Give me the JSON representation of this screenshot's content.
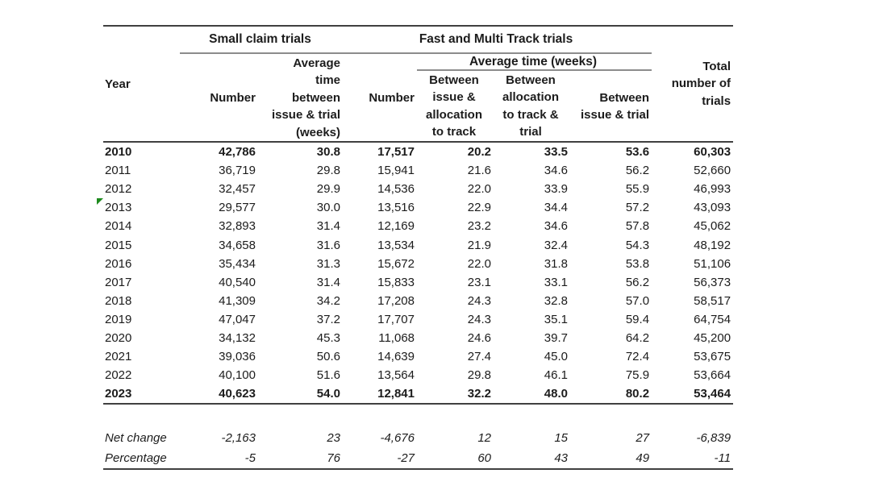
{
  "table": {
    "header": {
      "year": "Year",
      "small_claims_group": "Small claim trials",
      "fast_track_group": "Fast and Multi Track trials",
      "total": "Total\nnumber of\ntrials",
      "number_small": "Number",
      "avg_time_small": "Average\ntime\nbetween\nissue & trial\n(weeks)",
      "number_fast": "Number",
      "avg_time_group": "Average time (weeks)",
      "between_issue_allocation": "Between\nissue &\nallocation\nto track",
      "between_allocation_trial": "Between\nallocation\nto track &\ntrial",
      "between_issue_trial": "Between\nissue & trial"
    },
    "rows": [
      {
        "year": "2010",
        "bold": true,
        "values": [
          "42,786",
          "30.8",
          "17,517",
          "20.2",
          "33.5",
          "53.6",
          "60,303"
        ]
      },
      {
        "year": "2011",
        "values": [
          "36,719",
          "29.8",
          "15,941",
          "21.6",
          "34.6",
          "56.2",
          "52,660"
        ]
      },
      {
        "year": "2012",
        "values": [
          "32,457",
          "29.9",
          "14,536",
          "22.0",
          "33.9",
          "55.9",
          "46,993"
        ]
      },
      {
        "year": "2013",
        "marker": true,
        "values": [
          "29,577",
          "30.0",
          "13,516",
          "22.9",
          "34.4",
          "57.2",
          "43,093"
        ]
      },
      {
        "year": "2014",
        "values": [
          "32,893",
          "31.4",
          "12,169",
          "23.2",
          "34.6",
          "57.8",
          "45,062"
        ]
      },
      {
        "year": "2015",
        "values": [
          "34,658",
          "31.6",
          "13,534",
          "21.9",
          "32.4",
          "54.3",
          "48,192"
        ]
      },
      {
        "year": "2016",
        "values": [
          "35,434",
          "31.3",
          "15,672",
          "22.0",
          "31.8",
          "53.8",
          "51,106"
        ]
      },
      {
        "year": "2017",
        "values": [
          "40,540",
          "31.4",
          "15,833",
          "23.1",
          "33.1",
          "56.2",
          "56,373"
        ]
      },
      {
        "year": "2018",
        "values": [
          "41,309",
          "34.2",
          "17,208",
          "24.3",
          "32.8",
          "57.0",
          "58,517"
        ]
      },
      {
        "year": "2019",
        "values": [
          "47,047",
          "37.2",
          "17,707",
          "24.3",
          "35.1",
          "59.4",
          "64,754"
        ]
      },
      {
        "year": "2020",
        "values": [
          "34,132",
          "45.3",
          "11,068",
          "24.6",
          "39.7",
          "64.2",
          "45,200"
        ]
      },
      {
        "year": "2021",
        "values": [
          "39,036",
          "50.6",
          "14,639",
          "27.4",
          "45.0",
          "72.4",
          "53,675"
        ]
      },
      {
        "year": "2022",
        "values": [
          "40,100",
          "51.6",
          "13,564",
          "29.8",
          "46.1",
          "75.9",
          "53,664"
        ]
      },
      {
        "year": "2023",
        "bold": true,
        "rule_below": true,
        "values": [
          "40,623",
          "54.0",
          "12,841",
          "32.2",
          "48.0",
          "80.2",
          "53,464"
        ]
      }
    ],
    "summary_rows": [
      {
        "label": "Net change",
        "values": [
          "-2,163",
          "23",
          "-4,676",
          "12",
          "15",
          "27",
          "-6,839"
        ]
      },
      {
        "label": "Percentage",
        "values": [
          "-5",
          "76",
          "-27",
          "60",
          "43",
          "49",
          "-11"
        ]
      }
    ]
  },
  "colors": {
    "rule_dark": "#404040",
    "rule_gray": "#8c8c8c",
    "marker_green": "#1d8a1d",
    "text": "#1c1c1c",
    "background": "#ffffff"
  },
  "icons": {
    "cell_error_indicator": "green corner triangle"
  },
  "chart_data": {
    "type": "table",
    "title": "",
    "column_groups": [
      "",
      "Small claim trials",
      "Fast and Multi Track trials",
      "Total"
    ],
    "columns": [
      "Year",
      "Small claim trials - Number",
      "Small claim trials - Average time between issue & trial (weeks)",
      "Fast and Multi Track trials - Number",
      "Fast and Multi Track trials - Average time (weeks) - Between issue & allocation to track",
      "Fast and Multi Track trials - Average time (weeks) - Between allocation to track & trial",
      "Fast and Multi Track trials - Average time (weeks) - Between issue & trial",
      "Total number of trials"
    ],
    "rows": [
      [
        2010,
        42786,
        30.8,
        17517,
        20.2,
        33.5,
        53.6,
        60303
      ],
      [
        2011,
        36719,
        29.8,
        15941,
        21.6,
        34.6,
        56.2,
        52660
      ],
      [
        2012,
        32457,
        29.9,
        14536,
        22.0,
        33.9,
        55.9,
        46993
      ],
      [
        2013,
        29577,
        30.0,
        13516,
        22.9,
        34.4,
        57.2,
        43093
      ],
      [
        2014,
        32893,
        31.4,
        12169,
        23.2,
        34.6,
        57.8,
        45062
      ],
      [
        2015,
        34658,
        31.6,
        13534,
        21.9,
        32.4,
        54.3,
        48192
      ],
      [
        2016,
        35434,
        31.3,
        15672,
        22.0,
        31.8,
        53.8,
        51106
      ],
      [
        2017,
        40540,
        31.4,
        15833,
        23.1,
        33.1,
        56.2,
        56373
      ],
      [
        2018,
        41309,
        34.2,
        17208,
        24.3,
        32.8,
        57.0,
        58517
      ],
      [
        2019,
        47047,
        37.2,
        17707,
        24.3,
        35.1,
        59.4,
        64754
      ],
      [
        2020,
        34132,
        45.3,
        11068,
        24.6,
        39.7,
        64.2,
        45200
      ],
      [
        2021,
        39036,
        50.6,
        14639,
        27.4,
        45.0,
        72.4,
        53675
      ],
      [
        2022,
        40100,
        51.6,
        13564,
        29.8,
        46.1,
        75.9,
        53664
      ],
      [
        2023,
        40623,
        54.0,
        12841,
        32.2,
        48.0,
        80.2,
        53464
      ]
    ],
    "summary": [
      [
        "Net change",
        -2163,
        23,
        -4676,
        12,
        15,
        27,
        -6839
      ],
      [
        "Percentage",
        -5,
        76,
        -27,
        60,
        43,
        49,
        -11
      ]
    ],
    "layout_hints": {
      "bold_rows": [
        2010,
        2023
      ],
      "italic_rows": [
        "Net change",
        "Percentage"
      ],
      "error_indicator_on": 2013
    }
  }
}
